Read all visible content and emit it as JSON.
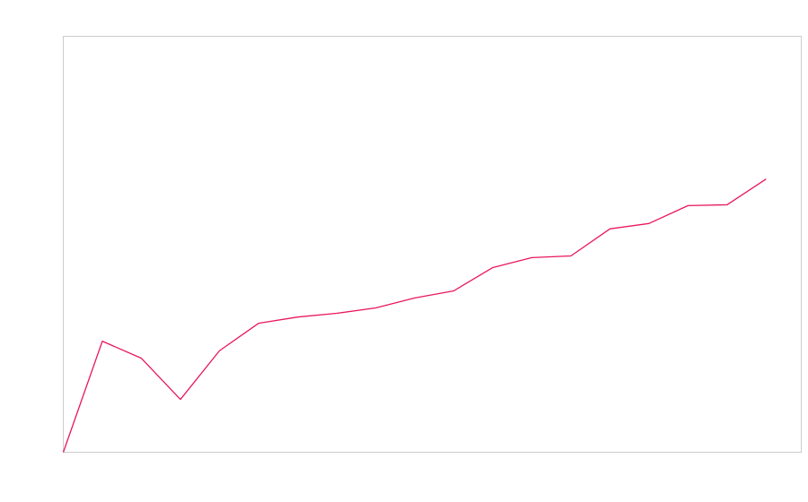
{
  "chart_data": {
    "type": "line",
    "x": [
      0,
      1,
      2,
      3,
      4,
      5,
      6,
      7,
      8,
      9,
      10,
      11,
      12,
      13,
      14,
      15,
      16,
      17,
      18
    ],
    "series": [
      {
        "color": "#e8175d",
        "values": [
          0,
          26.7,
          22.6,
          12.7,
          24.4,
          31.0,
          32.5,
          33.4,
          34.7,
          37.1,
          38.8,
          44.4,
          46.8,
          47.2,
          53.7,
          55.0,
          59.3,
          59.5,
          65.7
        ]
      }
    ],
    "xlim": [
      0,
      18.9
    ],
    "ylim": [
      0,
      100
    ]
  }
}
